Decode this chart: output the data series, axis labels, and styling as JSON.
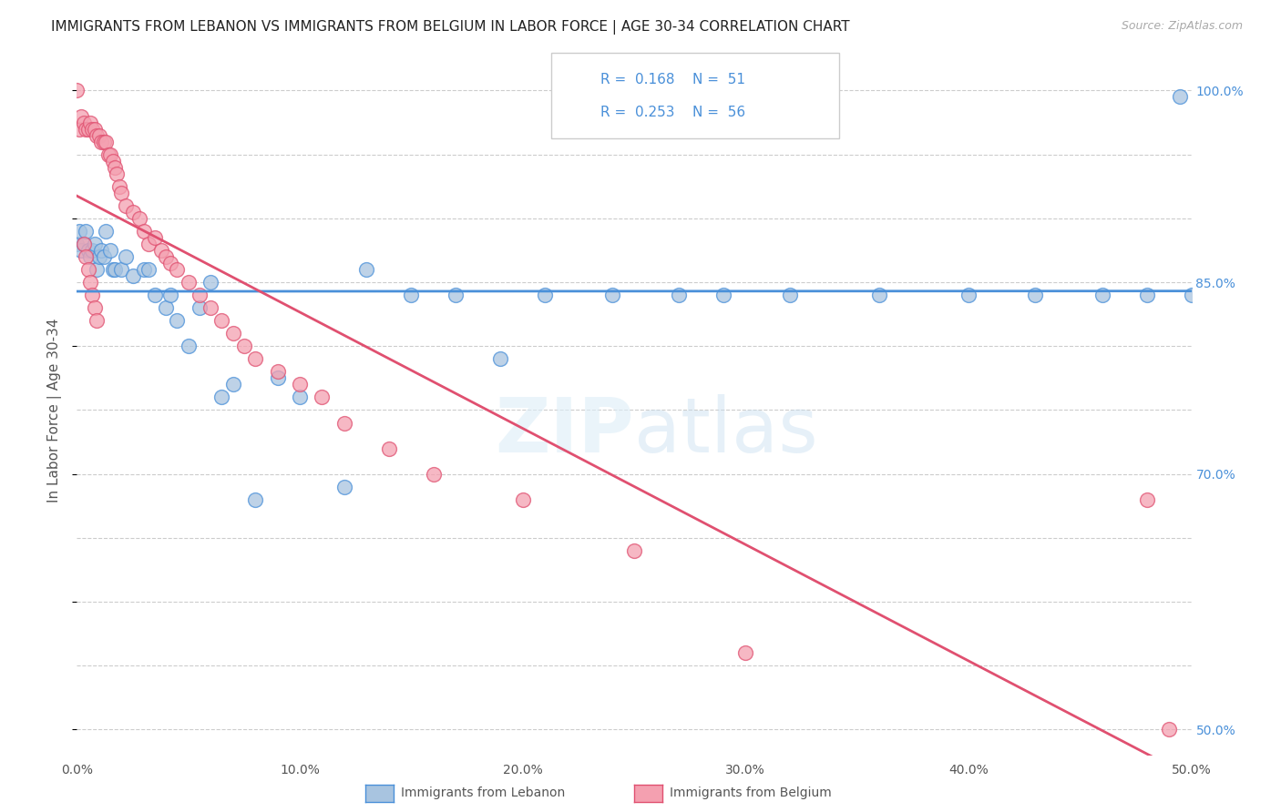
{
  "title": "IMMIGRANTS FROM LEBANON VS IMMIGRANTS FROM BELGIUM IN LABOR FORCE | AGE 30-34 CORRELATION CHART",
  "source": "Source: ZipAtlas.com",
  "ylabel": "In Labor Force | Age 30-34",
  "xlim": [
    0.0,
    0.5
  ],
  "ylim": [
    0.48,
    1.02
  ],
  "legend_r1": "0.168",
  "legend_n1": "51",
  "legend_r2": "0.253",
  "legend_n2": "56",
  "color_lebanon": "#a8c4e0",
  "color_belgium": "#f4a0b0",
  "trendline_lebanon": "#4a90d9",
  "trendline_belgium": "#e05070",
  "scatter_lebanon_x": [
    0.0,
    0.001,
    0.002,
    0.003,
    0.004,
    0.005,
    0.006,
    0.007,
    0.008,
    0.009,
    0.01,
    0.011,
    0.012,
    0.013,
    0.015,
    0.016,
    0.017,
    0.02,
    0.022,
    0.025,
    0.03,
    0.032,
    0.035,
    0.04,
    0.042,
    0.045,
    0.05,
    0.055,
    0.06,
    0.065,
    0.07,
    0.08,
    0.09,
    0.1,
    0.12,
    0.13,
    0.15,
    0.17,
    0.19,
    0.21,
    0.24,
    0.27,
    0.29,
    0.32,
    0.36,
    0.4,
    0.43,
    0.46,
    0.48,
    0.495,
    0.5
  ],
  "scatter_lebanon_y": [
    0.88,
    0.89,
    0.875,
    0.88,
    0.89,
    0.875,
    0.87,
    0.875,
    0.88,
    0.86,
    0.87,
    0.875,
    0.87,
    0.89,
    0.875,
    0.86,
    0.86,
    0.86,
    0.87,
    0.855,
    0.86,
    0.86,
    0.84,
    0.83,
    0.84,
    0.82,
    0.8,
    0.83,
    0.85,
    0.76,
    0.77,
    0.68,
    0.775,
    0.76,
    0.69,
    0.86,
    0.84,
    0.84,
    0.79,
    0.84,
    0.84,
    0.84,
    0.84,
    0.84,
    0.84,
    0.84,
    0.84,
    0.84,
    0.84,
    0.995,
    0.84
  ],
  "scatter_belgium_x": [
    0.0,
    0.001,
    0.002,
    0.003,
    0.004,
    0.005,
    0.006,
    0.007,
    0.008,
    0.009,
    0.01,
    0.011,
    0.012,
    0.013,
    0.014,
    0.015,
    0.016,
    0.017,
    0.018,
    0.019,
    0.02,
    0.022,
    0.025,
    0.028,
    0.03,
    0.032,
    0.035,
    0.038,
    0.04,
    0.042,
    0.045,
    0.05,
    0.055,
    0.06,
    0.065,
    0.07,
    0.075,
    0.08,
    0.09,
    0.1,
    0.11,
    0.12,
    0.14,
    0.16,
    0.2,
    0.25,
    0.3,
    0.003,
    0.004,
    0.005,
    0.006,
    0.007,
    0.008,
    0.009,
    0.48,
    0.49
  ],
  "scatter_belgium_y": [
    1.0,
    0.97,
    0.98,
    0.975,
    0.97,
    0.97,
    0.975,
    0.97,
    0.97,
    0.965,
    0.965,
    0.96,
    0.96,
    0.96,
    0.95,
    0.95,
    0.945,
    0.94,
    0.935,
    0.925,
    0.92,
    0.91,
    0.905,
    0.9,
    0.89,
    0.88,
    0.885,
    0.875,
    0.87,
    0.865,
    0.86,
    0.85,
    0.84,
    0.83,
    0.82,
    0.81,
    0.8,
    0.79,
    0.78,
    0.77,
    0.76,
    0.74,
    0.72,
    0.7,
    0.68,
    0.64,
    0.56,
    0.88,
    0.87,
    0.86,
    0.85,
    0.84,
    0.83,
    0.82,
    0.68,
    0.5
  ],
  "y_grid_ticks": [
    0.5,
    0.55,
    0.6,
    0.65,
    0.7,
    0.75,
    0.8,
    0.85,
    0.9,
    0.95,
    1.0
  ],
  "y_tick_labels": [
    "50.0%",
    "",
    "",
    "",
    "70.0%",
    "",
    "",
    "85.0%",
    "",
    "",
    "100.0%"
  ],
  "x_ticks": [
    0.0,
    0.1,
    0.2,
    0.3,
    0.4,
    0.5
  ],
  "x_tick_labels": [
    "0.0%",
    "10.0%",
    "20.0%",
    "30.0%",
    "40.0%",
    "50.0%"
  ],
  "grid_color": "#cccccc",
  "background_color": "#ffffff",
  "title_fontsize": 11,
  "axis_label_fontsize": 11,
  "tick_fontsize": 10,
  "legend_fontsize": 11,
  "source_fontsize": 9
}
